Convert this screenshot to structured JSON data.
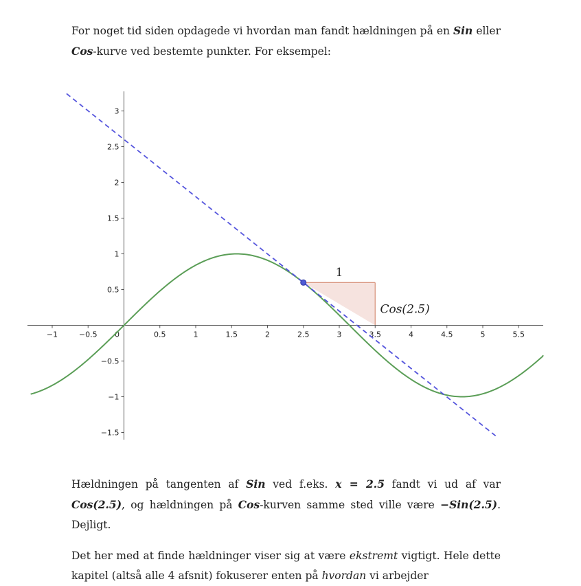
{
  "paragraph1": {
    "s1": "For noget tid siden opdagede vi hvordan man fandt hældningen på en ",
    "sin": "Sin",
    "s2": " eller ",
    "cos": "Cos",
    "s3": "-kurve ved bestemte punkter. For eksempel:"
  },
  "paragraph2": {
    "s1": "Hældningen på tangenten af ",
    "sin": "Sin",
    "s2": " ved f.eks. ",
    "x_eq": "x = 2.5",
    "s3": " fandt vi ud af var ",
    "cos_val": "Cos(2.5)",
    "s4": ", og hældningen på ",
    "cos": "Cos",
    "s5": "-kurven samme sted ville være ",
    "neg_sin_val": "−Sin(2.5)",
    "s6": ". Dejligt."
  },
  "paragraph3": {
    "s1": "Det her med at finde hældninger viser sig at være ",
    "extreme": "ekstremt",
    "s2": " vigtigt. Hele dette kapitel (altså alle 4 afsnit) fokuserer enten på ",
    "how": "hvordan",
    "s3": " vi arbejder"
  },
  "chart_data": {
    "type": "line",
    "title": "",
    "xlabel": "",
    "ylabel": "",
    "xlim": [
      -1.3,
      5.85
    ],
    "ylim": [
      -1.6,
      3.25
    ],
    "grid": false,
    "x_ticks": [
      "−1",
      "−0.5",
      "0",
      "0.5",
      "1",
      "1.5",
      "2",
      "2.5",
      "3",
      "3.5",
      "4",
      "4.5",
      "5",
      "5.5"
    ],
    "x_tick_values": [
      -1,
      -0.5,
      0,
      0.5,
      1,
      1.5,
      2,
      2.5,
      3,
      3.5,
      4,
      4.5,
      5,
      5.5
    ],
    "y_ticks": [
      "3",
      "2.5",
      "2",
      "1.5",
      "1",
      "0.5",
      "−0.5",
      "−1",
      "−1.5"
    ],
    "y_tick_values": [
      3,
      2.5,
      2,
      1.5,
      1,
      0.5,
      -0.5,
      -1,
      -1.5
    ],
    "series": [
      {
        "function": "sin(x)",
        "color": "#5b9e57",
        "style": "solid",
        "x_range": [
          -1.3,
          5.85
        ]
      },
      {
        "function": "cos(2.5)*(x-2.5)+sin(2.5)",
        "color": "#5555dd",
        "style": "dashed",
        "x_range": [
          -0.8,
          5.2
        ]
      }
    ],
    "point": {
      "x": 2.5,
      "y": 0.598,
      "color": "#4f5bd5"
    },
    "triangle": {
      "x0": 2.5,
      "x1": 3.5,
      "y_top": 0.598,
      "y_bottom": 0.0,
      "fill": "#f6e3df",
      "stroke": "#d9957f"
    },
    "annotations": [
      {
        "text": "1",
        "x": 3.0,
        "y": 0.68
      },
      {
        "text": "Cos(2.5)",
        "x": 3.55,
        "y": 0.2
      }
    ]
  }
}
